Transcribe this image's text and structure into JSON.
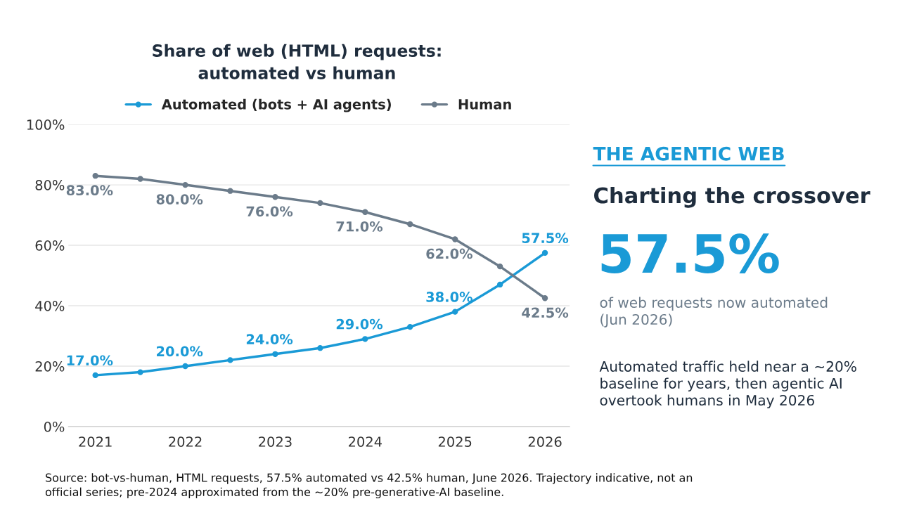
{
  "chart_data": {
    "type": "line",
    "title": "Share of web (HTML) requests:\nautomated vs human",
    "categories": [
      "2021",
      null,
      "2022",
      null,
      "2023",
      null,
      "2024",
      null,
      "2025",
      null,
      "2026"
    ],
    "series": [
      {
        "name": "Automated (bots + AI agents)",
        "color": "#1a9ad6",
        "values": [
          17,
          18,
          20,
          22,
          24,
          26,
          29,
          33,
          38,
          47,
          57.5
        ],
        "value_labels": [
          "17.0%",
          null,
          "20.0%",
          null,
          "24.0%",
          null,
          "29.0%",
          null,
          "38.0%",
          null,
          "57.5%"
        ]
      },
      {
        "name": "Human",
        "color": "#6b7b8a",
        "values": [
          83,
          82,
          80,
          78,
          76,
          74,
          71,
          67,
          62,
          53,
          42.5
        ],
        "value_labels": [
          "83.0%",
          null,
          "80.0%",
          null,
          "76.0%",
          null,
          "71.0%",
          null,
          "62.0%",
          null,
          "42.5%"
        ]
      }
    ],
    "ylim": [
      0,
      100
    ],
    "yticks": [
      {
        "value": 0,
        "label": "0%"
      },
      {
        "value": 20,
        "label": "20%"
      },
      {
        "value": 40,
        "label": "40%"
      },
      {
        "value": 60,
        "label": "60%"
      },
      {
        "value": 80,
        "label": "80%"
      },
      {
        "value": 100,
        "label": "100%"
      }
    ],
    "grid": "y",
    "legend": "top",
    "marker": "circle",
    "line_style": "solid",
    "annotations": [
      "THE AGENTIC WEB",
      "Charting the crossover",
      "57.5%",
      "of web requests now automated\n(Jun 2026)",
      "Automated traffic held near a ~20%\nbaseline for years, then agentic AI\novertook humans in May 2026",
      "Source: bot-vs-human, HTML requests, 57.5% automated vs 42.5% human, June 2026. Trajectory indicative, not an\nofficial series; pre-2024 approximated from the ~20% pre-generative-AI baseline."
    ]
  }
}
